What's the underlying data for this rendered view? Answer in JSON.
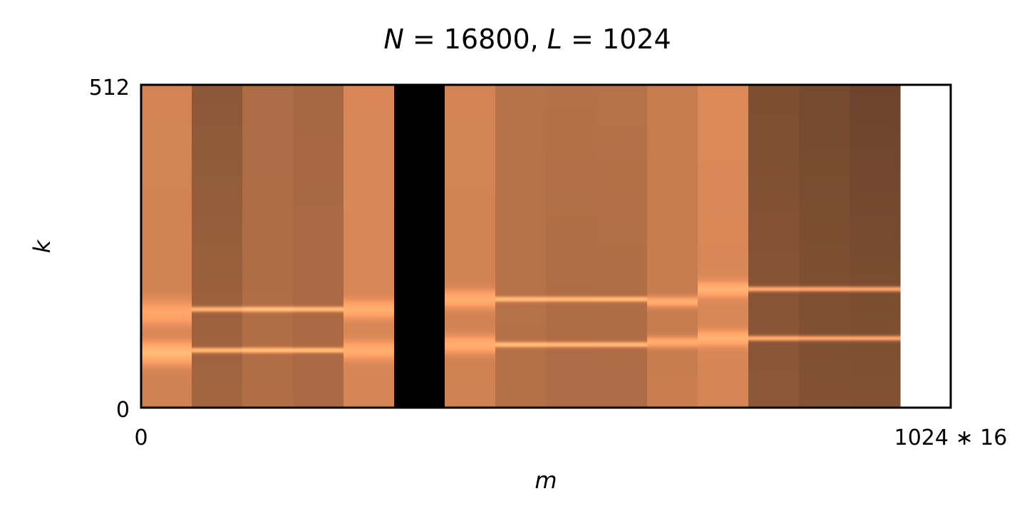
{
  "chart_data": {
    "type": "heatmap",
    "title": {
      "var1": "N",
      "eq1": " = 16800, ",
      "var2": "L",
      "eq2": " = 1024"
    },
    "xlabel": "m",
    "ylabel": "k",
    "x_ticks": [
      "0",
      "1024 ∗ 16"
    ],
    "y_ticks": [
      "0",
      "512"
    ],
    "xlim": [
      0,
      16
    ],
    "ylim": [
      0,
      512
    ],
    "colormap": "copper",
    "frames": [
      {
        "m": 0,
        "base": 0.66,
        "top": 0.67,
        "bottom": 0.64,
        "peaks": [
          {
            "k": 150,
            "w": 20,
            "amp": 0.18
          },
          {
            "k": 87,
            "w": 18,
            "amp": 0.28
          }
        ]
      },
      {
        "m": 1,
        "base": 0.52,
        "top": 0.36,
        "bottom": 0.5,
        "peaks": [
          {
            "k": 156,
            "w": 4,
            "amp": 0.45
          },
          {
            "k": 91,
            "w": 4,
            "amp": 0.45
          }
        ]
      },
      {
        "m": 2,
        "base": 0.56,
        "top": 0.52,
        "bottom": 0.55,
        "peaks": [
          {
            "k": 156,
            "w": 4,
            "amp": 0.45
          },
          {
            "k": 91,
            "w": 4,
            "amp": 0.45
          }
        ]
      },
      {
        "m": 3,
        "base": 0.54,
        "top": 0.5,
        "bottom": 0.53,
        "peaks": [
          {
            "k": 156,
            "w": 4,
            "amp": 0.45
          },
          {
            "k": 91,
            "w": 4,
            "amp": 0.45
          }
        ]
      },
      {
        "m": 4,
        "base": 0.68,
        "top": 0.68,
        "bottom": 0.66,
        "peaks": [
          {
            "k": 156,
            "w": 14,
            "amp": 0.2
          },
          {
            "k": 91,
            "w": 14,
            "amp": 0.2
          }
        ]
      },
      {
        "m": 5,
        "base": 0.0,
        "top": 0.0,
        "bottom": 0.0,
        "peaks": []
      },
      {
        "m": 6,
        "base": 0.66,
        "top": 0.67,
        "bottom": 0.64,
        "peaks": [
          {
            "k": 172,
            "w": 14,
            "amp": 0.22
          },
          {
            "k": 100,
            "w": 14,
            "amp": 0.22
          }
        ]
      },
      {
        "m": 7,
        "base": 0.58,
        "top": 0.56,
        "bottom": 0.55,
        "peaks": [
          {
            "k": 172,
            "w": 4,
            "amp": 0.42
          },
          {
            "k": 100,
            "w": 4,
            "amp": 0.42
          }
        ]
      },
      {
        "m": 8,
        "base": 0.58,
        "top": 0.55,
        "bottom": 0.5,
        "peaks": [
          {
            "k": 172,
            "w": 4,
            "amp": 0.42
          },
          {
            "k": 100,
            "w": 4,
            "amp": 0.42
          }
        ]
      },
      {
        "m": 9,
        "base": 0.58,
        "top": 0.56,
        "bottom": 0.5,
        "peaks": [
          {
            "k": 172,
            "w": 4,
            "amp": 0.42
          },
          {
            "k": 100,
            "w": 4,
            "amp": 0.42
          }
        ]
      },
      {
        "m": 10,
        "base": 0.62,
        "top": 0.62,
        "bottom": 0.64,
        "peaks": [
          {
            "k": 168,
            "w": 8,
            "amp": 0.25
          },
          {
            "k": 104,
            "w": 8,
            "amp": 0.25
          }
        ]
      },
      {
        "m": 11,
        "base": 0.68,
        "top": 0.7,
        "bottom": 0.66,
        "peaks": [
          {
            "k": 188,
            "w": 12,
            "amp": 0.22
          },
          {
            "k": 110,
            "w": 12,
            "amp": 0.22
          }
        ]
      },
      {
        "m": 12,
        "base": 0.48,
        "top": 0.3,
        "bottom": 0.4,
        "peaks": [
          {
            "k": 188,
            "w": 4,
            "amp": 0.45
          },
          {
            "k": 110,
            "w": 4,
            "amp": 0.45
          }
        ]
      },
      {
        "m": 13,
        "base": 0.46,
        "top": 0.28,
        "bottom": 0.36,
        "peaks": [
          {
            "k": 188,
            "w": 4,
            "amp": 0.45
          },
          {
            "k": 110,
            "w": 4,
            "amp": 0.45
          }
        ]
      },
      {
        "m": 14,
        "base": 0.44,
        "top": 0.24,
        "bottom": 0.38,
        "peaks": [
          {
            "k": 188,
            "w": 4,
            "amp": 0.45
          },
          {
            "k": 110,
            "w": 4,
            "amp": 0.45
          }
        ]
      }
    ]
  }
}
